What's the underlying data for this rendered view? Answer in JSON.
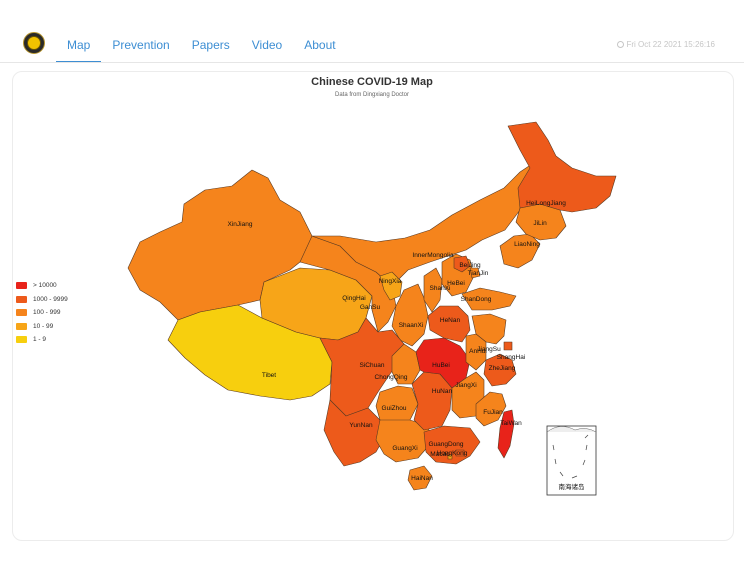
{
  "nav": {
    "items": [
      {
        "label": "Map",
        "active": true
      },
      {
        "label": "Prevention",
        "active": false
      },
      {
        "label": "Papers",
        "active": false
      },
      {
        "label": "Video",
        "active": false
      },
      {
        "label": "About",
        "active": false
      }
    ],
    "datetime": "Fri Oct 22 2021 15:26:16"
  },
  "map": {
    "title": "Chinese COVID-19 Map",
    "subtitle": "Data from Dingxiang Doctor",
    "inset_label": "南海诸岛",
    "legend": [
      {
        "label": "> 10000",
        "color": "#e8231a"
      },
      {
        "label": "1000 - 9999",
        "color": "#ed5a1b"
      },
      {
        "label": "100 - 999",
        "color": "#f5841c"
      },
      {
        "label": "10 - 99",
        "color": "#f7a518"
      },
      {
        "label": "1 - 9",
        "color": "#f7cf0e"
      }
    ],
    "provinces": [
      {
        "name": "XinJiang",
        "level": "100 - 999"
      },
      {
        "name": "Tibet",
        "level": "1 - 9"
      },
      {
        "name": "QingHai",
        "level": "10 - 99"
      },
      {
        "name": "GanSu",
        "level": "100 - 999"
      },
      {
        "name": "InnerMongolia",
        "level": "100 - 999"
      },
      {
        "name": "NingXia",
        "level": "10 - 99"
      },
      {
        "name": "ShaanXi",
        "level": "100 - 999"
      },
      {
        "name": "SiChuan",
        "level": "1000 - 9999"
      },
      {
        "name": "ChongQing",
        "level": "100 - 999"
      },
      {
        "name": "YunNan",
        "level": "1000 - 9999"
      },
      {
        "name": "GuiZhou",
        "level": "100 - 999"
      },
      {
        "name": "GuangXi",
        "level": "100 - 999"
      },
      {
        "name": "GuangDong",
        "level": "1000 - 9999"
      },
      {
        "name": "HongKong",
        "level": "1000 - 9999"
      },
      {
        "name": "Macao",
        "level": "10 - 99"
      },
      {
        "name": "HaiNan",
        "level": "100 - 999"
      },
      {
        "name": "HuNan",
        "level": "1000 - 9999"
      },
      {
        "name": "HuBei",
        "level": "> 10000"
      },
      {
        "name": "HeNan",
        "level": "1000 - 9999"
      },
      {
        "name": "ShanXi",
        "level": "100 - 999"
      },
      {
        "name": "HeBei",
        "level": "100 - 999"
      },
      {
        "name": "BeiJing",
        "level": "1000 - 9999"
      },
      {
        "name": "TianJin",
        "level": "100 - 999"
      },
      {
        "name": "ShanDong",
        "level": "100 - 999"
      },
      {
        "name": "JiangSu",
        "level": "100 - 999"
      },
      {
        "name": "AnHui",
        "level": "100 - 999"
      },
      {
        "name": "ShangHai",
        "level": "1000 - 9999"
      },
      {
        "name": "ZheJiang",
        "level": "1000 - 9999"
      },
      {
        "name": "JiangXi",
        "level": "100 - 999"
      },
      {
        "name": "FuJian",
        "level": "100 - 999"
      },
      {
        "name": "TaiWan",
        "level": "> 10000"
      },
      {
        "name": "LiaoNing",
        "level": "100 - 999"
      },
      {
        "name": "JiLin",
        "level": "100 - 999"
      },
      {
        "name": "HeiLongJiang",
        "level": "1000 - 9999"
      }
    ]
  }
}
